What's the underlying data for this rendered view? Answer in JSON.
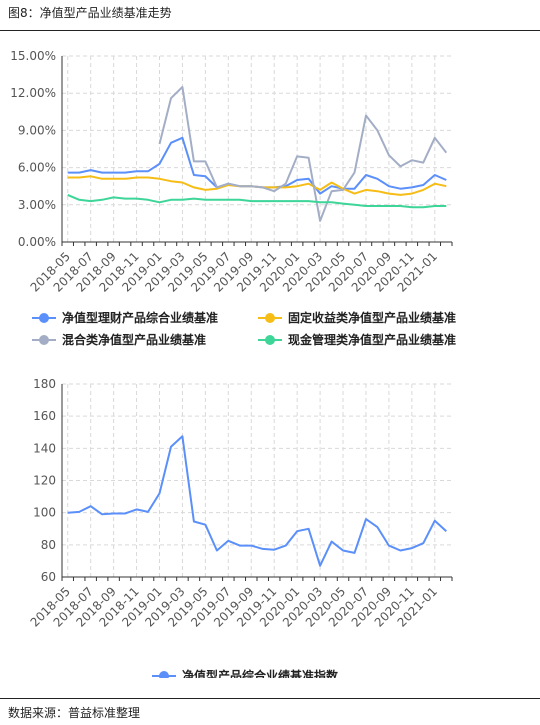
{
  "figure_title": "图8：净值型产品业绩基准走势",
  "source": "数据来源：普益标准整理",
  "colors": {
    "s1": "#5b8ff9",
    "s2": "#f6bd16",
    "s3": "#a3aec6",
    "s4": "#3dd598"
  },
  "chart_data": [
    {
      "type": "line",
      "x": [
        "2018-05",
        "2018-06",
        "2018-07",
        "2018-08",
        "2018-09",
        "2018-10",
        "2018-11",
        "2018-12",
        "2019-01",
        "2019-02",
        "2019-03",
        "2019-04",
        "2019-05",
        "2019-06",
        "2019-07",
        "2019-08",
        "2019-09",
        "2019-10",
        "2019-11",
        "2019-12",
        "2020-01",
        "2020-02",
        "2020-03",
        "2020-04",
        "2020-05",
        "2020-06",
        "2020-07",
        "2020-08",
        "2020-09",
        "2020-10",
        "2020-11",
        "2020-12",
        "2021-01",
        "2021-02"
      ],
      "xtick_labels": [
        "2018-05",
        "2018-07",
        "2018-09",
        "2018-11",
        "2019-01",
        "2019-03",
        "2019-05",
        "2019-07",
        "2019-09",
        "2019-11",
        "2020-01",
        "2020-03",
        "2020-05",
        "2020-07",
        "2020-09",
        "2020-11",
        "2021-01"
      ],
      "yticks": [
        "0.00%",
        "3.00%",
        "6.00%",
        "9.00%",
        "12.00%",
        "15.00%"
      ],
      "ylim": [
        0,
        15
      ],
      "grid": true,
      "legend_position": "bottom",
      "series": [
        {
          "name": "净值型理财产品综合业绩基准",
          "color_key": "s1",
          "values": [
            5.6,
            5.6,
            5.8,
            5.6,
            5.6,
            5.6,
            5.7,
            5.7,
            6.3,
            8.0,
            8.4,
            5.4,
            5.3,
            4.4,
            4.7,
            4.5,
            4.5,
            4.4,
            4.4,
            4.5,
            5.0,
            5.1,
            3.9,
            4.5,
            4.3,
            4.3,
            5.4,
            5.1,
            4.5,
            4.3,
            4.4,
            4.6,
            5.4,
            5.0
          ]
        },
        {
          "name": "固定收益类净值型产品业绩基准",
          "color_key": "s2",
          "values": [
            5.2,
            5.2,
            5.3,
            5.1,
            5.1,
            5.1,
            5.2,
            5.2,
            5.1,
            4.9,
            4.8,
            4.4,
            4.2,
            4.3,
            4.6,
            4.5,
            4.5,
            4.4,
            4.4,
            4.4,
            4.5,
            4.7,
            4.2,
            4.8,
            4.3,
            3.9,
            4.2,
            4.1,
            3.9,
            3.8,
            3.9,
            4.2,
            4.7,
            4.5
          ]
        },
        {
          "name": "混合类净值型产品业绩基准",
          "color_key": "s3",
          "values": [
            null,
            null,
            null,
            null,
            null,
            null,
            null,
            null,
            7.9,
            11.6,
            12.5,
            6.5,
            6.5,
            4.4,
            4.7,
            4.5,
            4.5,
            4.4,
            4.1,
            4.7,
            6.9,
            6.8,
            1.7,
            4.1,
            4.2,
            5.6,
            10.2,
            9.0,
            7.0,
            6.1,
            6.6,
            6.4,
            8.4,
            7.2
          ]
        },
        {
          "name": "现金管理类净值型产品业绩基准",
          "color_key": "s4",
          "values": [
            3.8,
            3.4,
            3.3,
            3.4,
            3.6,
            3.5,
            3.5,
            3.4,
            3.2,
            3.4,
            3.4,
            3.5,
            3.4,
            3.4,
            3.4,
            3.4,
            3.3,
            3.3,
            3.3,
            3.3,
            3.3,
            3.3,
            3.2,
            3.2,
            3.1,
            3.0,
            2.9,
            2.9,
            2.9,
            2.9,
            2.8,
            2.8,
            2.9,
            2.9
          ]
        }
      ]
    },
    {
      "type": "line",
      "x": [
        "2018-05",
        "2018-06",
        "2018-07",
        "2018-08",
        "2018-09",
        "2018-10",
        "2018-11",
        "2018-12",
        "2019-01",
        "2019-02",
        "2019-03",
        "2019-04",
        "2019-05",
        "2019-06",
        "2019-07",
        "2019-08",
        "2019-09",
        "2019-10",
        "2019-11",
        "2019-12",
        "2020-01",
        "2020-02",
        "2020-03",
        "2020-04",
        "2020-05",
        "2020-06",
        "2020-07",
        "2020-08",
        "2020-09",
        "2020-10",
        "2020-11",
        "2020-12",
        "2021-01",
        "2021-02"
      ],
      "xtick_labels": [
        "2018-05",
        "2018-07",
        "2018-09",
        "2018-11",
        "2019-01",
        "2019-03",
        "2019-05",
        "2019-07",
        "2019-09",
        "2019-11",
        "2020-01",
        "2020-03",
        "2020-05",
        "2020-07",
        "2020-09",
        "2020-11",
        "2021-01"
      ],
      "yticks": [
        "60",
        "80",
        "100",
        "120",
        "140",
        "160",
        "180"
      ],
      "ylim": [
        60,
        180
      ],
      "grid": true,
      "legend_position": "bottom",
      "series": [
        {
          "name": "净值型产品综合业绩基准指数",
          "color_key": "s1",
          "values": [
            100,
            100.5,
            104,
            99,
            99.5,
            99.5,
            102,
            100.5,
            112,
            141,
            147.5,
            94.5,
            92.5,
            76.5,
            82.5,
            79.5,
            79.5,
            77.5,
            77,
            79.5,
            88.5,
            90,
            67,
            82,
            76.5,
            75,
            96,
            91,
            79.5,
            76.5,
            78,
            81,
            95,
            88.5
          ]
        }
      ]
    }
  ]
}
